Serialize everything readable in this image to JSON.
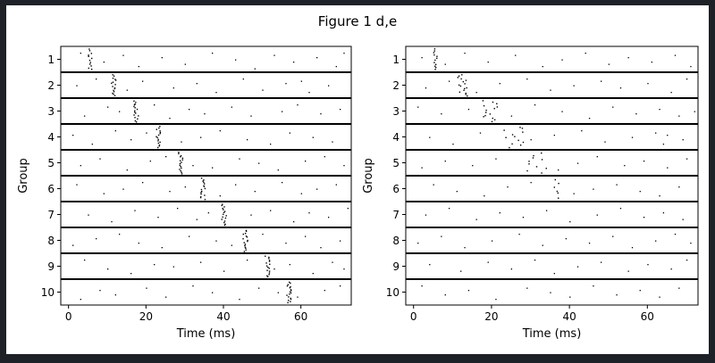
{
  "figure": {
    "title": "Figure 1 d,e"
  },
  "colors": {
    "background": "#1e2128",
    "figure": "#ffffff",
    "ink": "#000000"
  },
  "chart_data": [
    {
      "type": "scatter",
      "panel": "d",
      "title": "",
      "xlabel": "Time (ms)",
      "ylabel": "Group",
      "xlim": [
        -2,
        73
      ],
      "xticks": [
        0,
        20,
        40,
        60
      ],
      "groups": [
        "1",
        "2",
        "3",
        "4",
        "5",
        "6",
        "7",
        "8",
        "9",
        "10"
      ],
      "grid": false,
      "description_of_marks": "spike raster; each group is a band of trials, dots are spikes",
      "volley_times_ms": [
        5.5,
        11.5,
        17.3,
        23.0,
        28.8,
        34.5,
        40.0,
        45.5,
        51.2,
        56.8
      ],
      "volley_jitter_ms": [
        0.6,
        0.6,
        0.6,
        0.6,
        0.6,
        0.6,
        0.6,
        0.6,
        0.6,
        0.6
      ],
      "volley_spike_count": [
        12,
        16,
        16,
        16,
        16,
        16,
        16,
        16,
        16,
        18
      ],
      "background_spikes": [
        [
          [
            3,
            0.2
          ],
          [
            9,
            0.6
          ],
          [
            14,
            0.3
          ],
          [
            18,
            0.8
          ],
          [
            24,
            0.4
          ],
          [
            30,
            0.7
          ],
          [
            37,
            0.2
          ],
          [
            43,
            0.5
          ],
          [
            48,
            0.9
          ],
          [
            53,
            0.3
          ],
          [
            58,
            0.6
          ],
          [
            64,
            0.4
          ],
          [
            69,
            0.8
          ],
          [
            71,
            0.2
          ]
        ],
        [
          [
            2,
            0.5
          ],
          [
            7,
            0.2
          ],
          [
            15,
            0.7
          ],
          [
            19,
            0.3
          ],
          [
            27,
            0.6
          ],
          [
            33,
            0.4
          ],
          [
            38,
            0.8
          ],
          [
            45,
            0.2
          ],
          [
            50,
            0.7
          ],
          [
            56,
            0.4
          ],
          [
            60,
            0.3
          ],
          [
            62,
            0.8
          ],
          [
            67,
            0.5
          ]
        ],
        [
          [
            4,
            0.7
          ],
          [
            10,
            0.3
          ],
          [
            13,
            0.5
          ],
          [
            22,
            0.2
          ],
          [
            26,
            0.8
          ],
          [
            31,
            0.4
          ],
          [
            35,
            0.6
          ],
          [
            42,
            0.3
          ],
          [
            47,
            0.7
          ],
          [
            55,
            0.5
          ],
          [
            59,
            0.2
          ],
          [
            65,
            0.6
          ],
          [
            70,
            0.4
          ]
        ],
        [
          [
            1,
            0.4
          ],
          [
            6,
            0.8
          ],
          [
            12,
            0.2
          ],
          [
            16,
            0.6
          ],
          [
            20,
            0.3
          ],
          [
            29,
            0.7
          ],
          [
            34,
            0.5
          ],
          [
            39,
            0.2
          ],
          [
            46,
            0.6
          ],
          [
            52,
            0.8
          ],
          [
            57,
            0.3
          ],
          [
            63,
            0.5
          ],
          [
            68,
            0.7
          ]
        ],
        [
          [
            3,
            0.6
          ],
          [
            8,
            0.3
          ],
          [
            15,
            0.8
          ],
          [
            21,
            0.4
          ],
          [
            25,
            0.2
          ],
          [
            32,
            0.6
          ],
          [
            37,
            0.7
          ],
          [
            44,
            0.3
          ],
          [
            49,
            0.5
          ],
          [
            54,
            0.8
          ],
          [
            61,
            0.4
          ],
          [
            66,
            0.2
          ],
          [
            71,
            0.6
          ]
        ],
        [
          [
            2,
            0.3
          ],
          [
            9,
            0.7
          ],
          [
            14,
            0.5
          ],
          [
            19,
            0.2
          ],
          [
            26,
            0.6
          ],
          [
            30,
            0.4
          ],
          [
            39,
            0.8
          ],
          [
            43,
            0.3
          ],
          [
            48,
            0.6
          ],
          [
            55,
            0.2
          ],
          [
            60,
            0.7
          ],
          [
            64,
            0.5
          ],
          [
            69,
            0.3
          ]
        ],
        [
          [
            5,
            0.5
          ],
          [
            11,
            0.8
          ],
          [
            17,
            0.3
          ],
          [
            23,
            0.6
          ],
          [
            28,
            0.2
          ],
          [
            33,
            0.7
          ],
          [
            36,
            0.4
          ],
          [
            47,
            0.5
          ],
          [
            52,
            0.3
          ],
          [
            58,
            0.8
          ],
          [
            62,
            0.4
          ],
          [
            67,
            0.6
          ],
          [
            72,
            0.2
          ]
        ],
        [
          [
            1,
            0.7
          ],
          [
            7,
            0.4
          ],
          [
            13,
            0.2
          ],
          [
            18,
            0.6
          ],
          [
            24,
            0.8
          ],
          [
            31,
            0.3
          ],
          [
            38,
            0.5
          ],
          [
            42,
            0.7
          ],
          [
            50,
            0.2
          ],
          [
            56,
            0.6
          ],
          [
            61,
            0.3
          ],
          [
            65,
            0.8
          ],
          [
            70,
            0.5
          ]
        ],
        [
          [
            4,
            0.2
          ],
          [
            10,
            0.6
          ],
          [
            16,
            0.8
          ],
          [
            22,
            0.4
          ],
          [
            27,
            0.5
          ],
          [
            34,
            0.3
          ],
          [
            40,
            0.7
          ],
          [
            46,
            0.2
          ],
          [
            53,
            0.6
          ],
          [
            57,
            0.4
          ],
          [
            63,
            0.8
          ],
          [
            68,
            0.3
          ],
          [
            71,
            0.6
          ]
        ],
        [
          [
            3,
            0.8
          ],
          [
            8,
            0.4
          ],
          [
            12,
            0.6
          ],
          [
            20,
            0.3
          ],
          [
            25,
            0.7
          ],
          [
            32,
            0.2
          ],
          [
            37,
            0.5
          ],
          [
            44,
            0.8
          ],
          [
            49,
            0.3
          ],
          [
            54,
            0.5
          ],
          [
            59,
            0.7
          ],
          [
            66,
            0.4
          ],
          [
            70,
            0.2
          ]
        ]
      ]
    },
    {
      "type": "scatter",
      "panel": "e",
      "title": "",
      "xlabel": "Time (ms)",
      "ylabel": "Group",
      "xlim": [
        -2,
        73
      ],
      "xticks": [
        0,
        20,
        40,
        60
      ],
      "groups": [
        "1",
        "2",
        "3",
        "4",
        "5",
        "6",
        "7",
        "8",
        "9",
        "10"
      ],
      "grid": false,
      "description_of_marks": "spike raster; volley disperses across groups",
      "volley_times_ms": [
        5.5,
        12.5,
        19.5,
        25.5,
        31.5,
        36.5,
        null,
        null,
        null,
        null
      ],
      "volley_jitter_ms": [
        0.5,
        1.3,
        2.0,
        2.5,
        3.0,
        0.6,
        0,
        0,
        0,
        0
      ],
      "volley_spike_count": [
        12,
        16,
        14,
        12,
        10,
        6,
        0,
        0,
        0,
        0
      ],
      "background_spikes": [
        [
          [
            2,
            0.4
          ],
          [
            8,
            0.7
          ],
          [
            13,
            0.2
          ],
          [
            19,
            0.6
          ],
          [
            26,
            0.3
          ],
          [
            33,
            0.8
          ],
          [
            38,
            0.5
          ],
          [
            44,
            0.2
          ],
          [
            50,
            0.7
          ],
          [
            55,
            0.4
          ],
          [
            61,
            0.6
          ],
          [
            67,
            0.3
          ],
          [
            71,
            0.8
          ]
        ],
        [
          [
            3,
            0.6
          ],
          [
            9,
            0.3
          ],
          [
            16,
            0.8
          ],
          [
            22,
            0.4
          ],
          [
            29,
            0.2
          ],
          [
            35,
            0.7
          ],
          [
            41,
            0.5
          ],
          [
            48,
            0.3
          ],
          [
            53,
            0.6
          ],
          [
            60,
            0.4
          ],
          [
            66,
            0.8
          ],
          [
            70,
            0.2
          ]
        ],
        [
          [
            1,
            0.3
          ],
          [
            7,
            0.6
          ],
          [
            14,
            0.4
          ],
          [
            25,
            0.7
          ],
          [
            31,
            0.2
          ],
          [
            38,
            0.5
          ],
          [
            45,
            0.8
          ],
          [
            51,
            0.3
          ],
          [
            57,
            0.6
          ],
          [
            63,
            0.4
          ],
          [
            68,
            0.7
          ],
          [
            72,
            0.5
          ]
        ],
        [
          [
            4,
            0.5
          ],
          [
            10,
            0.8
          ],
          [
            17,
            0.3
          ],
          [
            30,
            0.6
          ],
          [
            36,
            0.4
          ],
          [
            43,
            0.2
          ],
          [
            49,
            0.7
          ],
          [
            56,
            0.5
          ],
          [
            62,
            0.3
          ],
          [
            64,
            0.8
          ],
          [
            65,
            0.4
          ],
          [
            69,
            0.6
          ]
        ],
        [
          [
            2,
            0.7
          ],
          [
            8,
            0.4
          ],
          [
            15,
            0.6
          ],
          [
            21,
            0.3
          ],
          [
            37,
            0.8
          ],
          [
            42,
            0.5
          ],
          [
            47,
            0.2
          ],
          [
            54,
            0.6
          ],
          [
            59,
            0.4
          ],
          [
            65,
            0.7
          ],
          [
            70,
            0.3
          ]
        ],
        [
          [
            5,
            0.3
          ],
          [
            11,
            0.6
          ],
          [
            18,
            0.8
          ],
          [
            24,
            0.4
          ],
          [
            30,
            0.2
          ],
          [
            41,
            0.7
          ],
          [
            46,
            0.5
          ],
          [
            52,
            0.3
          ],
          [
            58,
            0.6
          ],
          [
            63,
            0.8
          ],
          [
            68,
            0.4
          ]
        ],
        [
          [
            3,
            0.5
          ],
          [
            9,
            0.2
          ],
          [
            16,
            0.7
          ],
          [
            22,
            0.4
          ],
          [
            28,
            0.6
          ],
          [
            34,
            0.3
          ],
          [
            40,
            0.8
          ],
          [
            47,
            0.5
          ],
          [
            53,
            0.2
          ],
          [
            59,
            0.6
          ],
          [
            64,
            0.4
          ],
          [
            69,
            0.7
          ]
        ],
        [
          [
            1,
            0.6
          ],
          [
            7,
            0.3
          ],
          [
            13,
            0.8
          ],
          [
            20,
            0.5
          ],
          [
            27,
            0.2
          ],
          [
            33,
            0.7
          ],
          [
            39,
            0.4
          ],
          [
            45,
            0.6
          ],
          [
            51,
            0.3
          ],
          [
            56,
            0.8
          ],
          [
            62,
            0.5
          ],
          [
            67,
            0.2
          ],
          [
            71,
            0.6
          ]
        ],
        [
          [
            4,
            0.4
          ],
          [
            12,
            0.7
          ],
          [
            19,
            0.3
          ],
          [
            25,
            0.6
          ],
          [
            31,
            0.2
          ],
          [
            36,
            0.8
          ],
          [
            42,
            0.5
          ],
          [
            48,
            0.3
          ],
          [
            55,
            0.7
          ],
          [
            60,
            0.4
          ],
          [
            66,
            0.6
          ],
          [
            70,
            0.2
          ]
        ],
        [
          [
            2,
            0.2
          ],
          [
            8,
            0.6
          ],
          [
            14,
            0.4
          ],
          [
            21,
            0.8
          ],
          [
            29,
            0.3
          ],
          [
            35,
            0.5
          ],
          [
            40,
            0.7
          ],
          [
            46,
            0.2
          ],
          [
            52,
            0.6
          ],
          [
            58,
            0.4
          ],
          [
            63,
            0.7
          ],
          [
            68,
            0.3
          ]
        ]
      ]
    }
  ]
}
